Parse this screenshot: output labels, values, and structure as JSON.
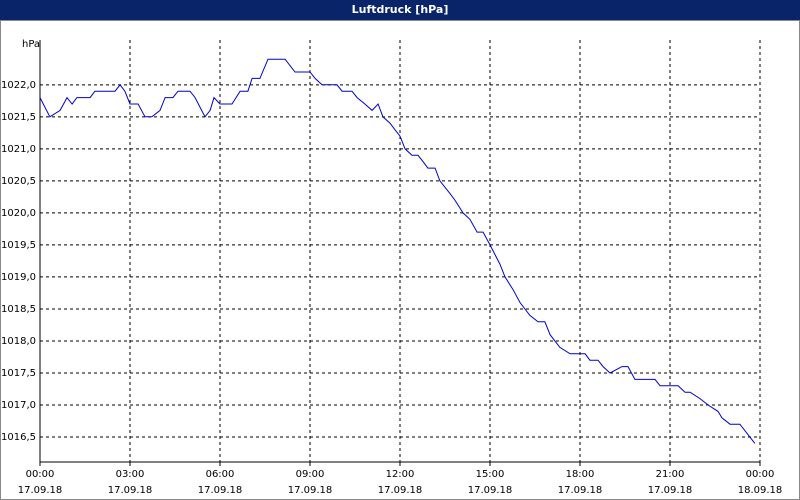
{
  "chart_data": {
    "type": "line",
    "title": "Luftdruck [hPa]",
    "y_unit": "hPa",
    "color": "#0000cc",
    "grid": true,
    "x": [
      0,
      0.33,
      0.67,
      0.9,
      1.07,
      1.23,
      1.67,
      1.83,
      2.5,
      2.67,
      2.83,
      3,
      3.27,
      3.5,
      3.73,
      4,
      4.17,
      4.43,
      4.6,
      5,
      5.17,
      5.5,
      5.67,
      5.8,
      6,
      6.4,
      6.67,
      6.93,
      7.07,
      7.33,
      7.6,
      8.17,
      8.5,
      9,
      9.17,
      9.4,
      9.9,
      10.07,
      10.4,
      10.57,
      10.83,
      11.07,
      11.27,
      11.43,
      11.67,
      11.83,
      12,
      12.17,
      12.4,
      12.6,
      12.77,
      12.93,
      13.17,
      13.33,
      13.67,
      13.83,
      14.1,
      14.33,
      14.57,
      14.77,
      15,
      15.33,
      15.5,
      15.77,
      16,
      16.33,
      16.6,
      16.83,
      17,
      17.33,
      17.67,
      18.17,
      18.33,
      18.6,
      18.77,
      19,
      19.4,
      19.6,
      19.83,
      20.5,
      20.67,
      21.27,
      21.5,
      21.67,
      22,
      22.27,
      22.6,
      22.73,
      23,
      23.33,
      23.83
    ],
    "values": [
      1021.8,
      1021.5,
      1021.6,
      1021.8,
      1021.7,
      1021.8,
      1021.8,
      1021.9,
      1021.9,
      1022.0,
      1021.9,
      1021.7,
      1021.7,
      1021.5,
      1021.5,
      1021.6,
      1021.8,
      1021.8,
      1021.9,
      1021.9,
      1021.8,
      1021.5,
      1021.6,
      1021.8,
      1021.7,
      1021.7,
      1021.9,
      1021.9,
      1022.1,
      1022.1,
      1022.4,
      1022.4,
      1022.2,
      1022.2,
      1022.1,
      1022.0,
      1022.0,
      1021.9,
      1021.9,
      1021.8,
      1021.7,
      1021.6,
      1021.7,
      1021.5,
      1021.4,
      1021.3,
      1021.2,
      1021.0,
      1020.9,
      1020.9,
      1020.8,
      1020.7,
      1020.7,
      1020.5,
      1020.3,
      1020.2,
      1020.0,
      1019.9,
      1019.7,
      1019.7,
      1019.5,
      1019.2,
      1019.0,
      1018.8,
      1018.6,
      1018.4,
      1018.3,
      1018.3,
      1018.1,
      1017.9,
      1017.8,
      1017.8,
      1017.7,
      1017.7,
      1017.6,
      1017.5,
      1017.6,
      1017.6,
      1017.4,
      1017.4,
      1017.3,
      1017.3,
      1017.2,
      1017.2,
      1017.1,
      1017.0,
      1016.9,
      1016.8,
      1016.7,
      1016.7,
      1016.4
    ],
    "xlim": [
      0,
      24
    ],
    "ylim": [
      1016.11,
      1022.7
    ],
    "xticks": [
      {
        "value": 0,
        "label": "00:00",
        "date": "17.09.18"
      },
      {
        "value": 3,
        "label": "03:00",
        "date": "17.09.18"
      },
      {
        "value": 6,
        "label": "06:00",
        "date": "17.09.18"
      },
      {
        "value": 9,
        "label": "09:00",
        "date": "17.09.18"
      },
      {
        "value": 12,
        "label": "12:00",
        "date": "17.09.18"
      },
      {
        "value": 15,
        "label": "15:00",
        "date": "17.09.18"
      },
      {
        "value": 18,
        "label": "18:00",
        "date": "17.09.18"
      },
      {
        "value": 21,
        "label": "21:00",
        "date": "17.09.18"
      },
      {
        "value": 24,
        "label": "00:00",
        "date": "18.09.18"
      }
    ],
    "yticks": [
      {
        "value": 1016.5,
        "label": "1016,5"
      },
      {
        "value": 1017,
        "label": "1017,0"
      },
      {
        "value": 1017.5,
        "label": "1017,5"
      },
      {
        "value": 1018,
        "label": "1018,0"
      },
      {
        "value": 1018.5,
        "label": "1018,5"
      },
      {
        "value": 1019,
        "label": "1019,0"
      },
      {
        "value": 1019.5,
        "label": "1019,5"
      },
      {
        "value": 1020,
        "label": "1020,0"
      },
      {
        "value": 1020.5,
        "label": "1020,5"
      },
      {
        "value": 1021,
        "label": "1021,0"
      },
      {
        "value": 1021.5,
        "label": "1021,5"
      },
      {
        "value": 1022,
        "label": "1022,0"
      }
    ]
  }
}
